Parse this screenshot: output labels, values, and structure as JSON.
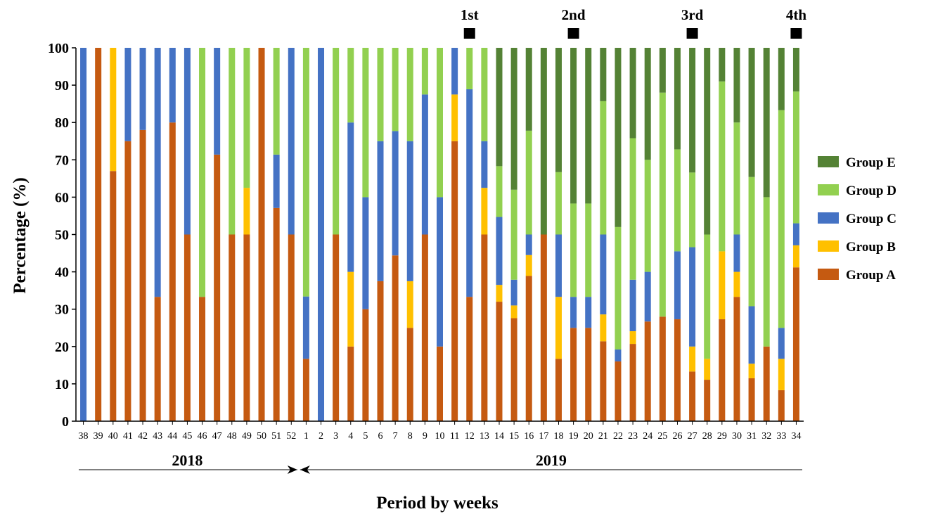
{
  "chart_data": {
    "type": "bar",
    "stacked": true,
    "xlabel": "Period by weeks",
    "ylabel": "Percentage (%)",
    "ylim": [
      0,
      100
    ],
    "yticks": [
      0,
      10,
      20,
      30,
      40,
      50,
      60,
      70,
      80,
      90,
      100
    ],
    "grid": false,
    "legend_position": "right",
    "categories": [
      "38",
      "39",
      "40",
      "41",
      "42",
      "43",
      "44",
      "45",
      "46",
      "47",
      "48",
      "49",
      "50",
      "51",
      "52",
      "1",
      "2",
      "3",
      "4",
      "5",
      "6",
      "7",
      "8",
      "9",
      "10",
      "11",
      "12",
      "13",
      "14",
      "15",
      "16",
      "17",
      "18",
      "19",
      "20",
      "21",
      "22",
      "23",
      "24",
      "25",
      "26",
      "27",
      "28",
      "29",
      "30",
      "31",
      "32",
      "33",
      "34"
    ],
    "series": [
      {
        "name": "Group A",
        "color": "#c55a11",
        "values": [
          0,
          100,
          67,
          75,
          78,
          33.3,
          80,
          50,
          33.3,
          71.4,
          50,
          50,
          100,
          57.1,
          50,
          16.7,
          0,
          50,
          20,
          30,
          37.5,
          44.4,
          25,
          50,
          20,
          75,
          33.3,
          50,
          32,
          27.6,
          38.9,
          50,
          16.7,
          25,
          25,
          21.4,
          16,
          20.7,
          26.7,
          28,
          27.3,
          13.3,
          11.1,
          27.3,
          33.3,
          11.5,
          20,
          8.3,
          41.2
        ]
      },
      {
        "name": "Group B",
        "color": "#ffc000",
        "values": [
          0,
          0,
          33,
          0,
          0,
          0,
          0,
          0,
          0,
          0,
          0,
          12.5,
          0,
          0,
          0,
          0,
          0,
          0,
          20,
          0,
          0,
          0,
          12.5,
          0,
          0,
          12.5,
          0,
          12.5,
          4.5,
          3.4,
          5.6,
          0,
          16.6,
          0,
          0,
          7.2,
          0,
          3.4,
          0,
          0,
          0,
          6.7,
          5.6,
          18.2,
          6.7,
          3.9,
          0,
          8.4,
          5.9
        ]
      },
      {
        "name": "Group C",
        "color": "#4472c4",
        "values": [
          100,
          0,
          0,
          25,
          22,
          66.7,
          20,
          50,
          0,
          28.6,
          0,
          0,
          0,
          14.3,
          50,
          16.7,
          100,
          0,
          40,
          30,
          37.5,
          33.3,
          37.5,
          37.5,
          40,
          12.5,
          55.6,
          12.5,
          18.2,
          6.9,
          5.5,
          0,
          16.7,
          8.3,
          8.3,
          21.4,
          3.2,
          13.8,
          13.3,
          0,
          18.2,
          26.6,
          0,
          0,
          10,
          15.4,
          0,
          8.3,
          5.9
        ]
      },
      {
        "name": "Group D",
        "color": "#92d050",
        "values": [
          0,
          0,
          0,
          0,
          0,
          0,
          0,
          0,
          66.7,
          0,
          50,
          37.5,
          0,
          28.6,
          0,
          66.6,
          0,
          50,
          20,
          40,
          25,
          22.3,
          25,
          12.5,
          40,
          0,
          11.1,
          25,
          13.6,
          24.1,
          27.8,
          0,
          16.7,
          25,
          25,
          35.7,
          32.8,
          37.9,
          30,
          60,
          27.3,
          20,
          33.3,
          45.5,
          30,
          34.6,
          40,
          58.3,
          35.3
        ]
      },
      {
        "name": "Group E",
        "color": "#548235",
        "values": [
          0,
          0,
          0,
          0,
          0,
          0,
          0,
          0,
          0,
          0,
          0,
          0,
          0,
          0,
          0,
          0,
          0,
          0,
          0,
          0,
          0,
          0,
          0,
          0,
          0,
          0,
          0,
          0,
          31.7,
          38,
          22.2,
          50,
          33.3,
          41.7,
          41.7,
          14.3,
          48,
          24.2,
          30,
          12,
          27.2,
          33.4,
          50,
          9,
          20,
          34.6,
          40,
          16.7,
          11.7
        ]
      }
    ],
    "markers": [
      {
        "label": "1st",
        "category": "12"
      },
      {
        "label": "2nd",
        "category": "19"
      },
      {
        "label": "3rd",
        "category": "27"
      },
      {
        "label": "4th",
        "category": "34"
      }
    ],
    "year_spans": [
      {
        "label": "2018",
        "from": "38",
        "to": "52"
      },
      {
        "label": "2019",
        "from": "1",
        "to": "34"
      }
    ]
  }
}
